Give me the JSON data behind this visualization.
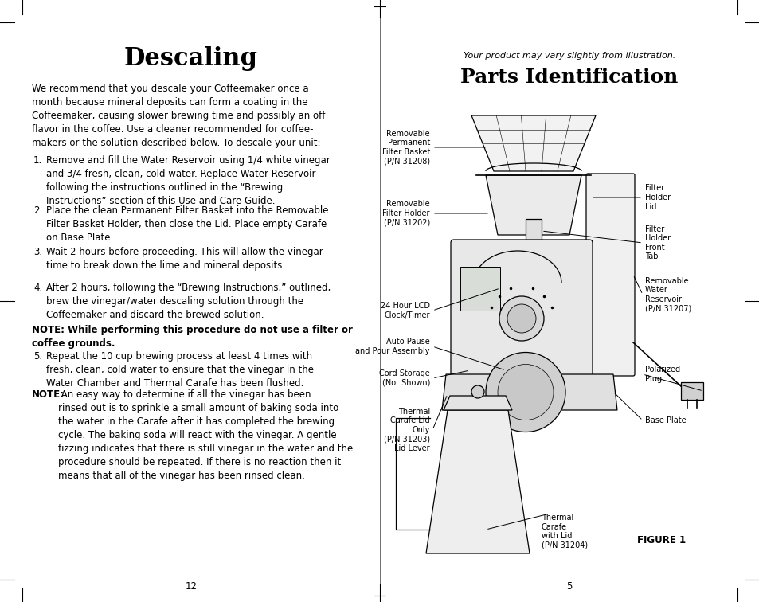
{
  "bg_color": "#ffffff",
  "page_width": 9.54,
  "page_height": 7.56,
  "left_title": "Descaling",
  "right_subtitle": "Your product may vary slightly from illustration.",
  "right_title": "Parts Identification",
  "left_intro": "We recommend that you descale your Coffeemaker once a\nmonth because mineral deposits can form a coating in the\nCoffeemaker, causing slower brewing time and possibly an off\nflavor in the coffee. Use a cleaner recommended for coffee-\nmakers or the solution described below. To descale your unit:",
  "steps": [
    "Remove and fill the Water Reservoir using 1/4 white vinegar\nand 3/4 fresh, clean, cold water. Replace Water Reservoir\nfollowing the instructions outlined in the “Brewing\nInstructions” section of this Use and Care Guide.",
    "Place the clean Permanent Filter Basket into the Removable\nFilter Basket Holder, then close the Lid. Place empty Carafe\non Base Plate.",
    "Wait 2 hours before proceeding. This will allow the vinegar\ntime to break down the lime and mineral deposits.",
    "After 2 hours, following the “Brewing Instructions,” outlined,\nbrew the vinegar/water descaling solution through the\nCoffeemaker and discard the brewed solution."
  ],
  "note1": "NOTE: While performing this procedure do not use a filter or\ncoffee grounds.",
  "step5": "Repeat the 10 cup brewing process at least 4 times with\nfresh, clean, cold water to ensure that the vinegar in the\nWater Chamber and Thermal Carafe has been flushed.",
  "note2_bold": "NOTE:",
  "note2_rest": " An easy way to determine if all the vinegar has been\nrinsed out is to sprinkle a small amount of baking soda into\nthe water in the Carafe after it has completed the brewing\ncycle. The baking soda will react with the vinegar. A gentle\nfizzing indicates that there is still vinegar in the water and the\nprocedure should be repeated. If there is no reaction then it\nmeans that all of the vinegar has been rinsed clean.",
  "page_num_left": "12",
  "page_num_right": "5",
  "figure_label": "FIGURE 1"
}
